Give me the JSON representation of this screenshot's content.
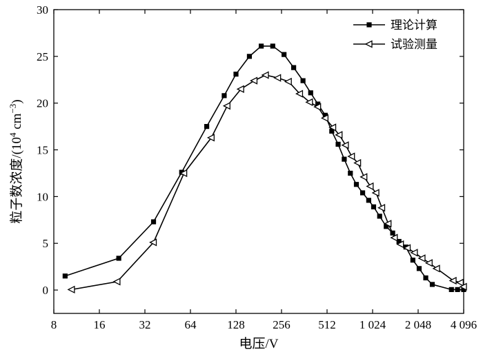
{
  "chart_data": {
    "type": "line",
    "xlabel": "电压/V",
    "ylabel": "粒子数浓度/(10⁴ cm⁻³)",
    "ylabel_main": "粒子数浓度/(10",
    "ylabel_exp": "4",
    "ylabel_unit": " cm",
    "ylabel_unit_exp": "−3",
    "ylabel_close": ")",
    "x_scale": "log2",
    "xlim": [
      8,
      4096
    ],
    "ylim": [
      -2.5,
      30
    ],
    "x_ticks": [
      8,
      16,
      32,
      64,
      128,
      256,
      512,
      1024,
      2048,
      4096
    ],
    "x_tick_labels": [
      "8",
      "16",
      "32",
      "64",
      "128",
      "256",
      "512",
      "1 024",
      "2 048",
      "4 096"
    ],
    "y_ticks": [
      0,
      5,
      10,
      15,
      20,
      25,
      30
    ],
    "y_tick_labels": [
      "0",
      "5",
      "10",
      "15",
      "20",
      "25",
      "30"
    ],
    "grid": false,
    "legend_position": "top-right",
    "series": [
      {
        "name": "理论计算",
        "marker": "filled-square",
        "color": "#000000",
        "x": [
          9.5,
          21.5,
          36.5,
          56,
          82,
          107,
          128,
          157,
          188,
          224,
          266,
          308,
          355,
          399,
          445,
          498,
          550,
          606,
          665,
          730,
          800,
          880,
          965,
          1040,
          1140,
          1260,
          1390,
          1530,
          1700,
          1890,
          2080,
          2300,
          2540,
          3400,
          3730,
          4096
        ],
        "y": [
          1.5,
          3.4,
          7.3,
          12.6,
          17.5,
          20.8,
          23.1,
          25.0,
          26.1,
          26.1,
          25.2,
          23.8,
          22.4,
          21.1,
          19.9,
          18.7,
          17.0,
          15.6,
          14.0,
          12.5,
          11.3,
          10.4,
          9.6,
          8.9,
          7.9,
          6.8,
          6.1,
          5.2,
          4.6,
          3.2,
          2.3,
          1.3,
          0.6,
          0.05,
          0.05,
          0.05
        ]
      },
      {
        "name": "试验测量",
        "marker": "open-triangle-left",
        "color": "#000000",
        "x": [
          10.5,
          21,
          36.5,
          58,
          88,
          112,
          138,
          169,
          201,
          242,
          285,
          338,
          393,
          445,
          498,
          560,
          617,
          679,
          745,
          818,
          900,
          990,
          1080,
          1180,
          1300,
          1430,
          1570,
          1740,
          1940,
          2180,
          2430,
          2720,
          3500,
          3900,
          4096
        ],
        "y": [
          0.05,
          0.9,
          5.1,
          12.5,
          16.3,
          19.7,
          21.5,
          22.4,
          23.0,
          22.7,
          22.3,
          21.0,
          20.1,
          19.6,
          18.4,
          17.4,
          16.6,
          15.5,
          14.3,
          13.6,
          12.1,
          11.1,
          10.4,
          8.8,
          7.1,
          5.6,
          4.9,
          4.5,
          4.0,
          3.4,
          2.9,
          2.3,
          1.0,
          0.8,
          0.35
        ]
      }
    ]
  }
}
